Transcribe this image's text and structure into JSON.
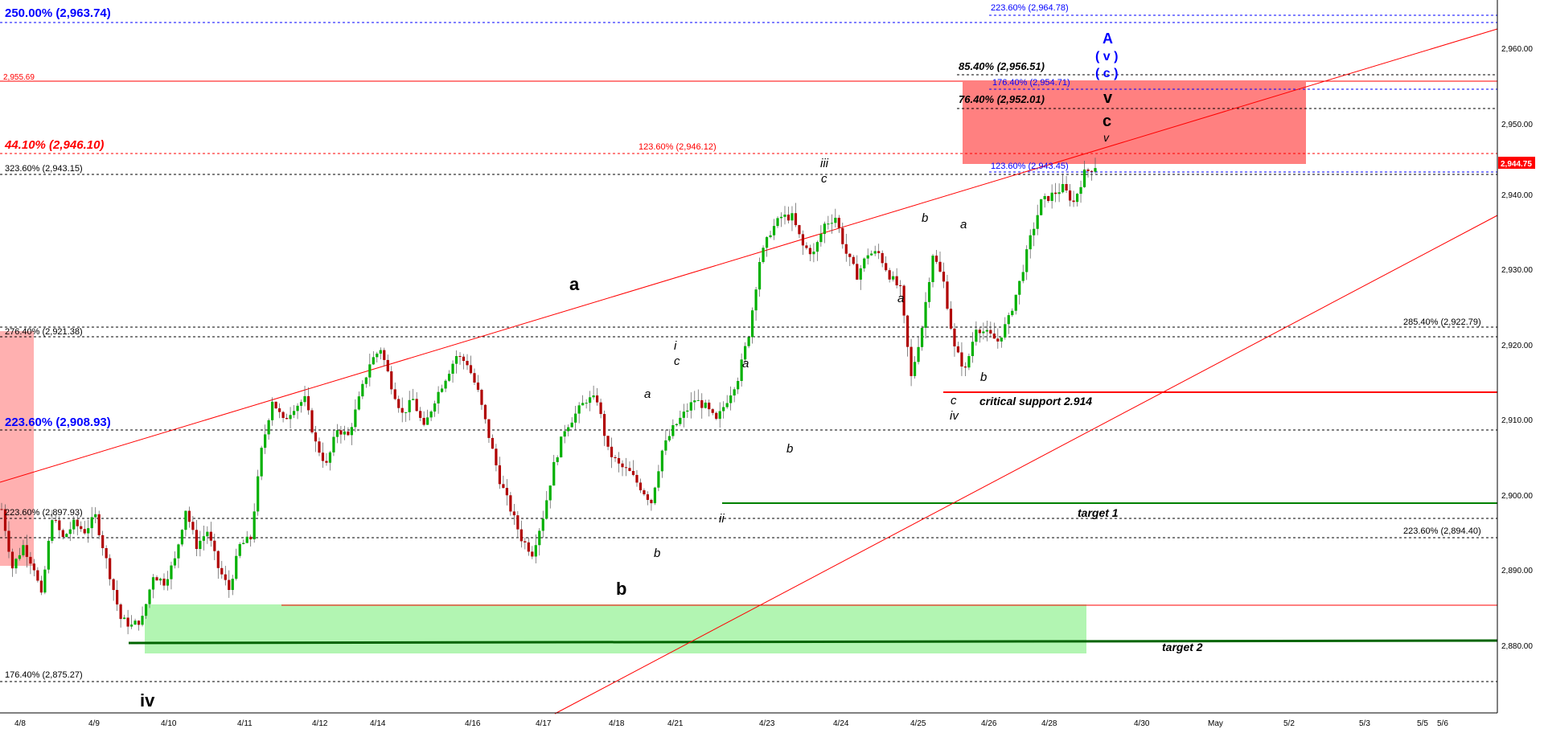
{
  "chart_data": {
    "type": "candlestick",
    "y_axis": {
      "ticks": [
        "2,880.00",
        "2,890.00",
        "2,900.00",
        "2,910.00",
        "2,920.00",
        "2,930.00",
        "2,940.00",
        "2,950.00",
        "2,960.00"
      ],
      "range": [
        2870.1,
        2967.7
      ],
      "last_price_label": "2,944.75",
      "last_price": 2944.75
    },
    "x_axis": {
      "ticks": [
        "4/8",
        "4/9",
        "4/10",
        "4/11",
        "4/12",
        "4/14",
        "4/16",
        "4/17",
        "4/18",
        "4/21",
        "4/23",
        "4/24",
        "4/25",
        "4/26",
        "4/28",
        "4/30",
        "May",
        "5/2",
        "5/3",
        "5/5",
        "5/6"
      ]
    },
    "price_path": [
      [
        0,
        2898
      ],
      [
        3,
        2890
      ],
      [
        6,
        2893
      ],
      [
        9,
        2890
      ],
      [
        11,
        2886
      ],
      [
        14,
        2897
      ],
      [
        17,
        2894
      ],
      [
        20,
        2896
      ],
      [
        23,
        2895
      ],
      [
        26,
        2897
      ],
      [
        28,
        2893
      ],
      [
        31,
        2887
      ],
      [
        33,
        2883
      ],
      [
        36,
        2882
      ],
      [
        39,
        2883
      ],
      [
        42,
        2889
      ],
      [
        45,
        2888
      ],
      [
        48,
        2891
      ],
      [
        51,
        2898
      ],
      [
        54,
        2893
      ],
      [
        57,
        2895
      ],
      [
        60,
        2890
      ],
      [
        63,
        2887
      ],
      [
        66,
        2893
      ],
      [
        69,
        2894
      ],
      [
        72,
        2906
      ],
      [
        75,
        2913
      ],
      [
        78,
        2910
      ],
      [
        81,
        2912
      ],
      [
        84,
        2913
      ],
      [
        87,
        2907
      ],
      [
        90,
        2904
      ],
      [
        93,
        2909
      ],
      [
        96,
        2908
      ],
      [
        99,
        2913
      ],
      [
        102,
        2918
      ],
      [
        105,
        2920
      ],
      [
        108,
        2915
      ],
      [
        111,
        2911
      ],
      [
        114,
        2913
      ],
      [
        117,
        2909
      ],
      [
        120,
        2913
      ],
      [
        123,
        2916
      ],
      [
        126,
        2919
      ],
      [
        129,
        2918
      ],
      [
        132,
        2914
      ],
      [
        135,
        2908
      ],
      [
        138,
        2902
      ],
      [
        141,
        2898
      ],
      [
        144,
        2894
      ],
      [
        147,
        2892
      ],
      [
        150,
        2897
      ],
      [
        153,
        2904
      ],
      [
        156,
        2909
      ],
      [
        159,
        2911
      ],
      [
        162,
        2913
      ],
      [
        165,
        2913
      ],
      [
        168,
        2906
      ],
      [
        171,
        2904
      ],
      [
        174,
        2903
      ],
      [
        177,
        2901
      ],
      [
        180,
        2899
      ],
      [
        183,
        2906
      ],
      [
        186,
        2909
      ],
      [
        189,
        2911
      ],
      [
        192,
        2913
      ],
      [
        195,
        2912
      ],
      [
        198,
        2910
      ],
      [
        201,
        2913
      ],
      [
        204,
        2916
      ],
      [
        207,
        2922
      ],
      [
        210,
        2932
      ],
      [
        213,
        2936
      ],
      [
        216,
        2938
      ],
      [
        219,
        2938
      ],
      [
        222,
        2934
      ],
      [
        225,
        2933
      ],
      [
        228,
        2937
      ],
      [
        231,
        2938
      ],
      [
        234,
        2933
      ],
      [
        237,
        2930
      ],
      [
        240,
        2933
      ],
      [
        243,
        2933
      ],
      [
        246,
        2930
      ],
      [
        249,
        2928
      ],
      [
        252,
        2916
      ],
      [
        255,
        2923
      ],
      [
        258,
        2933
      ],
      [
        261,
        2929
      ],
      [
        264,
        2920
      ],
      [
        267,
        2917
      ],
      [
        270,
        2923
      ],
      [
        273,
        2922
      ],
      [
        276,
        2921
      ],
      [
        279,
        2924
      ],
      [
        282,
        2929
      ],
      [
        285,
        2935
      ],
      [
        288,
        2940
      ],
      [
        291,
        2941
      ],
      [
        294,
        2942
      ],
      [
        297,
        2940
      ],
      [
        300,
        2944
      ],
      [
        303,
        2945
      ]
    ],
    "annotations": {
      "fib_left_top": "250.00% (2,963.74)",
      "fib_top_right": "223.60% (2,964.78)",
      "level_2955": "2,955.69",
      "fib_8540": "85.40% (2,956.51)",
      "fib_17640": "176.40% (2,954.71)",
      "fib_7640": "76.40% (2,952.01)",
      "fib_4410": "44.10% (2,946.10)",
      "fib_12360_red": "123.60% (2,946.12)",
      "fib_32360": "323.60% (2,943.15)",
      "fib_12360_blue": "123.60% (2,943.45)",
      "fib_27640": "276.40% (2,921.38)",
      "fib_28540": "285.40% (2,922.79)",
      "fib_22360_blue": "223.60% (2,908.93)",
      "fib_22360_left": "223.60% (2,897.93)",
      "fib_22360_right": "223.60% (2,894.40)",
      "fib_17640_bottom": "176.40% (2,875.27)",
      "critical_support": "critical support 2.914",
      "target1": "target 1",
      "target2": "target 2"
    },
    "wave_labels": {
      "A": "A",
      "v_paren": "( v )",
      "c_paren": "( c )",
      "v_big": "v",
      "c_big": "c",
      "v_small": "v",
      "iii": "iii",
      "c_iii": "c",
      "a_big": "a",
      "b_big": "b",
      "iv_big": "iv",
      "i": "i",
      "c_i": "c",
      "a_1": "a",
      "b_1": "b",
      "ii": "ii",
      "a_2": "a",
      "b_2": "b",
      "a_3": "a",
      "b_3": "b",
      "a_4": "a",
      "b_4": "b",
      "c_iv": "c",
      "iv_small": "iv"
    },
    "colors": {
      "up_candle": "#00b000",
      "down_candle": "#b00000",
      "red_line": "#ff0000",
      "green_line": "#008000",
      "blue_text": "#0000ff",
      "red_zone": "#ff8080",
      "green_zone": "#b2f5b2"
    },
    "grid": false
  }
}
